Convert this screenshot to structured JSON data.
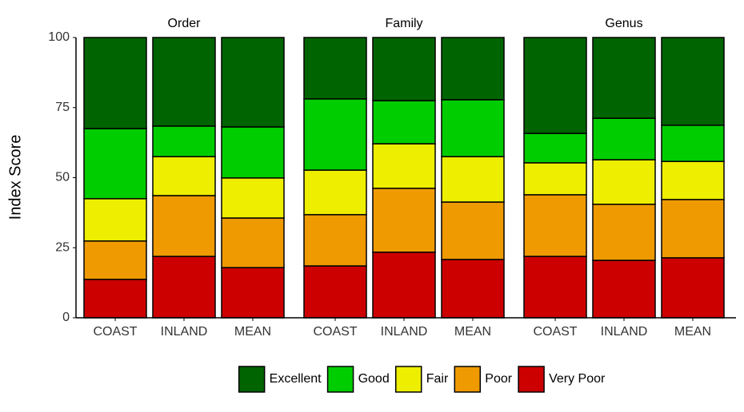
{
  "chart_data": {
    "type": "bar",
    "stacked": true,
    "ylabel": "Index Score",
    "ylim": [
      0,
      100
    ],
    "yticks": [
      0,
      25,
      50,
      75,
      100
    ],
    "legend": "bottom",
    "facets": [
      {
        "title": "Order",
        "categories": [
          "COAST",
          "INLAND",
          "MEAN"
        ]
      },
      {
        "title": "Family",
        "categories": [
          "COAST",
          "INLAND",
          "MEAN"
        ]
      },
      {
        "title": "Genus",
        "categories": [
          "COAST",
          "INLAND",
          "MEAN"
        ]
      }
    ],
    "series": [
      {
        "name": "Excellent",
        "color": "#006400",
        "values": [
          32.5,
          31.6,
          31.9,
          21.9,
          22.5,
          22.2,
          34.2,
          28.8,
          31.3
        ]
      },
      {
        "name": "Good",
        "color": "#00cd00",
        "values": [
          25.0,
          10.9,
          18.2,
          25.4,
          15.4,
          20.3,
          10.5,
          14.8,
          12.9
        ]
      },
      {
        "name": "Fair",
        "color": "#eeee00",
        "values": [
          15.1,
          13.9,
          14.3,
          15.9,
          15.9,
          16.2,
          11.4,
          15.9,
          13.6
        ]
      },
      {
        "name": "Poor",
        "color": "#ee9a00",
        "values": [
          13.7,
          21.7,
          17.7,
          18.3,
          22.8,
          20.5,
          22.0,
          20.0,
          20.8
        ]
      },
      {
        "name": "Very Poor",
        "color": "#cd0000",
        "values": [
          13.7,
          21.9,
          17.9,
          18.5,
          23.4,
          20.8,
          21.9,
          20.5,
          21.4
        ]
      }
    ]
  }
}
